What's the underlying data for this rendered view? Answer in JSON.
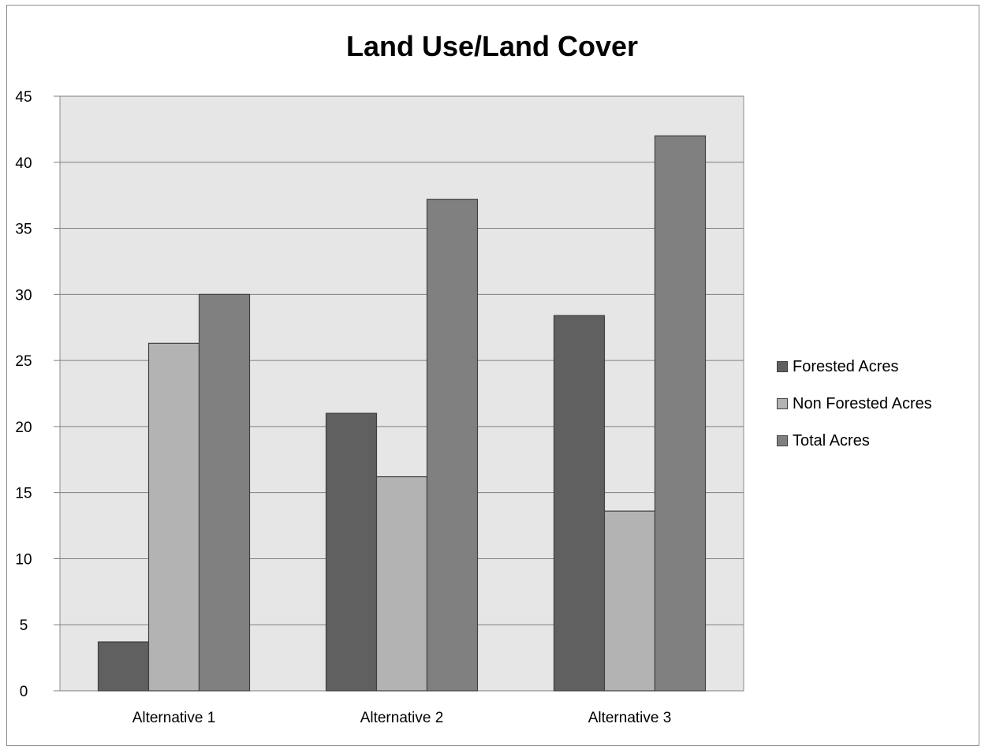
{
  "chart_data": {
    "type": "bar",
    "title": "Land Use/Land Cover",
    "xlabel": "",
    "ylabel": "",
    "categories": [
      "Alternative 1",
      "Alternative 2",
      "Alternative 3"
    ],
    "series": [
      {
        "name": "Forested Acres",
        "values": [
          3.7,
          21.0,
          28.4
        ],
        "color": "#606060"
      },
      {
        "name": "Non Forested Acres",
        "values": [
          26.3,
          16.2,
          13.6
        ],
        "color": "#b3b3b3"
      },
      {
        "name": "Total Acres",
        "values": [
          30.0,
          37.2,
          42.0
        ],
        "color": "#808080"
      }
    ],
    "ylim": [
      0,
      45
    ],
    "yticks": [
      "0",
      "5",
      "10",
      "15",
      "20",
      "25",
      "30",
      "35",
      "40",
      "45"
    ],
    "grid": true,
    "legend_position": "right",
    "plot_background": "#e6e6e6"
  }
}
